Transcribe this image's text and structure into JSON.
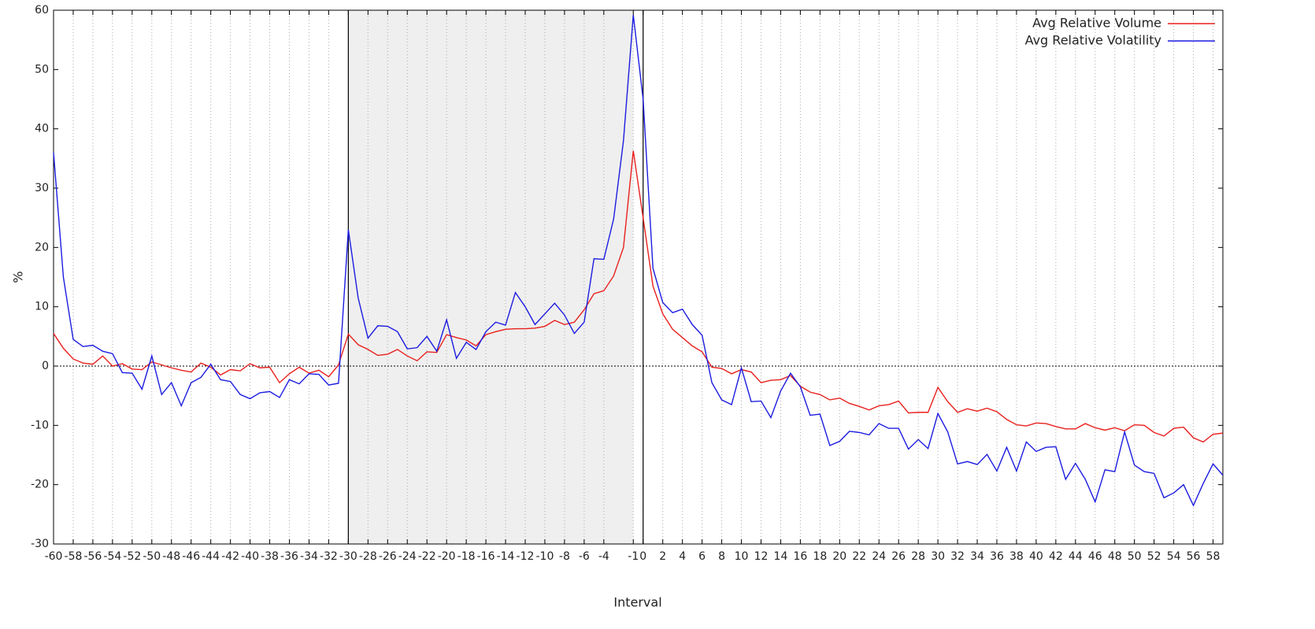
{
  "chart_data": {
    "type": "line",
    "xlabel": "Interval",
    "ylabel": "%",
    "x": [
      -60,
      -59,
      -58,
      -57,
      -56,
      -55,
      -54,
      -53,
      -52,
      -51,
      -50,
      -49,
      -48,
      -47,
      -46,
      -45,
      -44,
      -43,
      -42,
      -41,
      -40,
      -39,
      -38,
      -37,
      -36,
      -35,
      -34,
      -33,
      -32,
      -31,
      -30,
      -29,
      -28,
      -27,
      -26,
      -25,
      -24,
      -23,
      -22,
      -21,
      -20,
      -19,
      -18,
      -17,
      -16,
      -15,
      -14,
      -13,
      -12,
      -11,
      -10,
      -9,
      -8,
      -7,
      -6,
      -5,
      -4,
      -3,
      -2,
      -1,
      0,
      1,
      2,
      3,
      4,
      5,
      6,
      7,
      8,
      9,
      10,
      11,
      12,
      13,
      14,
      15,
      16,
      17,
      18,
      19,
      20,
      21,
      22,
      23,
      24,
      25,
      26,
      27,
      28,
      29,
      30,
      31,
      32,
      33,
      34,
      35,
      36,
      37,
      38,
      39,
      40,
      41,
      42,
      43,
      44,
      45,
      46,
      47,
      48,
      49,
      50,
      51,
      52,
      53,
      54,
      55,
      56,
      57,
      58,
      59
    ],
    "series": [
      {
        "name": "Avg Relative Volume",
        "color": "#e8201c",
        "values": [
          5.5,
          3,
          1.2,
          0.5,
          0.3,
          1.7,
          0,
          0.4,
          -0.5,
          -0.6,
          0.7,
          0.2,
          -0.3,
          -0.7,
          -1,
          0.5,
          -0.2,
          -1.5,
          -0.6,
          -0.8,
          0.4,
          -0.3,
          -0.2,
          -2.8,
          -1.3,
          -0.2,
          -1.2,
          -0.7,
          -1.8,
          0.2,
          5.4,
          3.6,
          2.8,
          1.8,
          2,
          2.8,
          1.7,
          0.9,
          2.4,
          2.3,
          5.3,
          4.8,
          4.4,
          3.4,
          5.3,
          5.8,
          6.2,
          6.3,
          6.3,
          6.4,
          6.7,
          7.7,
          7,
          7.4,
          9.5,
          12.2,
          12.7,
          15.2,
          20,
          36.3,
          25,
          13.5,
          8.8,
          6.2,
          4.8,
          3.4,
          2.4,
          -0.2,
          -0.4,
          -1.3,
          -0.6,
          -1,
          -2.8,
          -2.4,
          -2.3,
          -1.6,
          -3.4,
          -4.4,
          -4.8,
          -5.7,
          -5.4,
          -6.3,
          -6.8,
          -7.4,
          -6.7,
          -6.5,
          -5.9,
          -7.9,
          -7.8,
          -7.8,
          -3.6,
          -6,
          -7.8,
          -7.2,
          -7.6,
          -7.1,
          -7.7,
          -9,
          -9.9,
          -10.1,
          -9.6,
          -9.7,
          -10.2,
          -10.6,
          -10.6,
          -9.7,
          -10.4,
          -10.8,
          -10.4,
          -10.9,
          -9.9,
          -10,
          -11.2,
          -11.8,
          -10.5,
          -10.3,
          -12.1,
          -12.8,
          -11.5,
          -11.3
        ]
      },
      {
        "name": "Avg Relative Volatility",
        "color": "#1c1ce0",
        "values": [
          36,
          15,
          4.5,
          3.3,
          3.5,
          2.5,
          2.1,
          -1.1,
          -1.2,
          -3.9,
          1.7,
          -4.8,
          -2.8,
          -6.7,
          -2.8,
          -1.9,
          0.3,
          -2.3,
          -2.6,
          -4.8,
          -5.5,
          -4.5,
          -4.3,
          -5.3,
          -2.3,
          -3,
          -1.3,
          -1.4,
          -3.2,
          -2.9,
          23,
          11.5,
          4.7,
          6.8,
          6.7,
          5.8,
          2.9,
          3.1,
          5,
          2.5,
          7.8,
          1.3,
          4,
          2.8,
          5.8,
          7.4,
          6.9,
          12.4,
          10,
          7,
          8.8,
          10.6,
          8.6,
          5.5,
          7.4,
          18.1,
          18,
          24.8,
          38,
          59.2,
          45,
          16.5,
          10.7,
          9,
          9.6,
          7,
          5.2,
          -2.8,
          -5.7,
          -6.5,
          -0.3,
          -6,
          -5.9,
          -8.7,
          -4.2,
          -1.2,
          -3.5,
          -8.3,
          -8.1,
          -13.4,
          -12.7,
          -11,
          -11.2,
          -11.6,
          -9.7,
          -10.5,
          -10.5,
          -14,
          -12.4,
          -13.9,
          -8,
          -11.1,
          -16.5,
          -16.1,
          -16.6,
          -14.9,
          -17.7,
          -13.7,
          -17.7,
          -12.8,
          -14.4,
          -13.7,
          -13.6,
          -19.1,
          -16.4,
          -19.1,
          -22.9,
          -17.5,
          -17.8,
          -11.1,
          -16.7,
          -17.8,
          -18.1,
          -22.2,
          -21.4,
          -20,
          -23.5,
          -19.8,
          -16.5,
          -18.4
        ]
      }
    ],
    "xlim": [
      -60,
      59
    ],
    "ylim": [
      -30,
      60
    ],
    "xticks": [
      -60,
      -58,
      -56,
      -54,
      -52,
      -50,
      -48,
      -46,
      -44,
      -42,
      -40,
      -38,
      -36,
      -34,
      -32,
      -30,
      -28,
      -26,
      -24,
      -22,
      -20,
      -18,
      -16,
      -14,
      -12,
      -10,
      -8,
      -6,
      -4,
      -1,
      0,
      2,
      4,
      6,
      8,
      10,
      12,
      14,
      16,
      18,
      20,
      22,
      24,
      26,
      28,
      30,
      32,
      34,
      36,
      38,
      40,
      42,
      44,
      46,
      48,
      50,
      52,
      54,
      56,
      58
    ],
    "yticks": [
      -30,
      -20,
      -10,
      0,
      10,
      20,
      30,
      40,
      50,
      60
    ],
    "grid": true,
    "legend": "top-right",
    "shaded_region": [
      -30,
      -1
    ],
    "vlines": [
      -30,
      0
    ]
  }
}
